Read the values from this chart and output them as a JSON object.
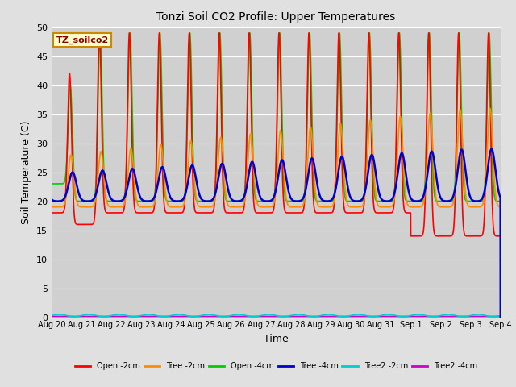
{
  "title": "Tonzi Soil CO2 Profile: Upper Temperatures",
  "xlabel": "Time",
  "ylabel": "Soil Temperature (C)",
  "ylim": [
    0,
    50
  ],
  "x_tick_labels": [
    "Aug 20",
    "Aug 21",
    "Aug 22",
    "Aug 23",
    "Aug 24",
    "Aug 25",
    "Aug 26",
    "Aug 27",
    "Aug 28",
    "Aug 29",
    "Aug 30",
    "Aug 31",
    "Sep 1",
    "Sep 2",
    "Sep 3",
    "Sep 4"
  ],
  "series": {
    "open_2cm": {
      "color": "#ff0000",
      "label": "Open -2cm",
      "lw": 1.2
    },
    "tree_2cm": {
      "color": "#ff8c00",
      "label": "Tree -2cm",
      "lw": 1.2
    },
    "open_4cm": {
      "color": "#00cc00",
      "label": "Open -4cm",
      "lw": 1.2
    },
    "tree_4cm": {
      "color": "#0000cc",
      "label": "Tree -4cm",
      "lw": 1.8
    },
    "tree2_2cm": {
      "color": "#00cccc",
      "label": "Tree2 -2cm",
      "lw": 1.2
    },
    "tree2_4cm": {
      "color": "#cc00cc",
      "label": "Tree2 -4cm",
      "lw": 1.2
    }
  },
  "label_box": {
    "text": "TZ_soilco2",
    "color": "#8b0000",
    "bg": "#ffffcc",
    "edge": "#cc8800"
  },
  "fig_bg": "#e0e0e0",
  "plot_bg": "#d0d0d0",
  "grid_color": "#ffffff"
}
